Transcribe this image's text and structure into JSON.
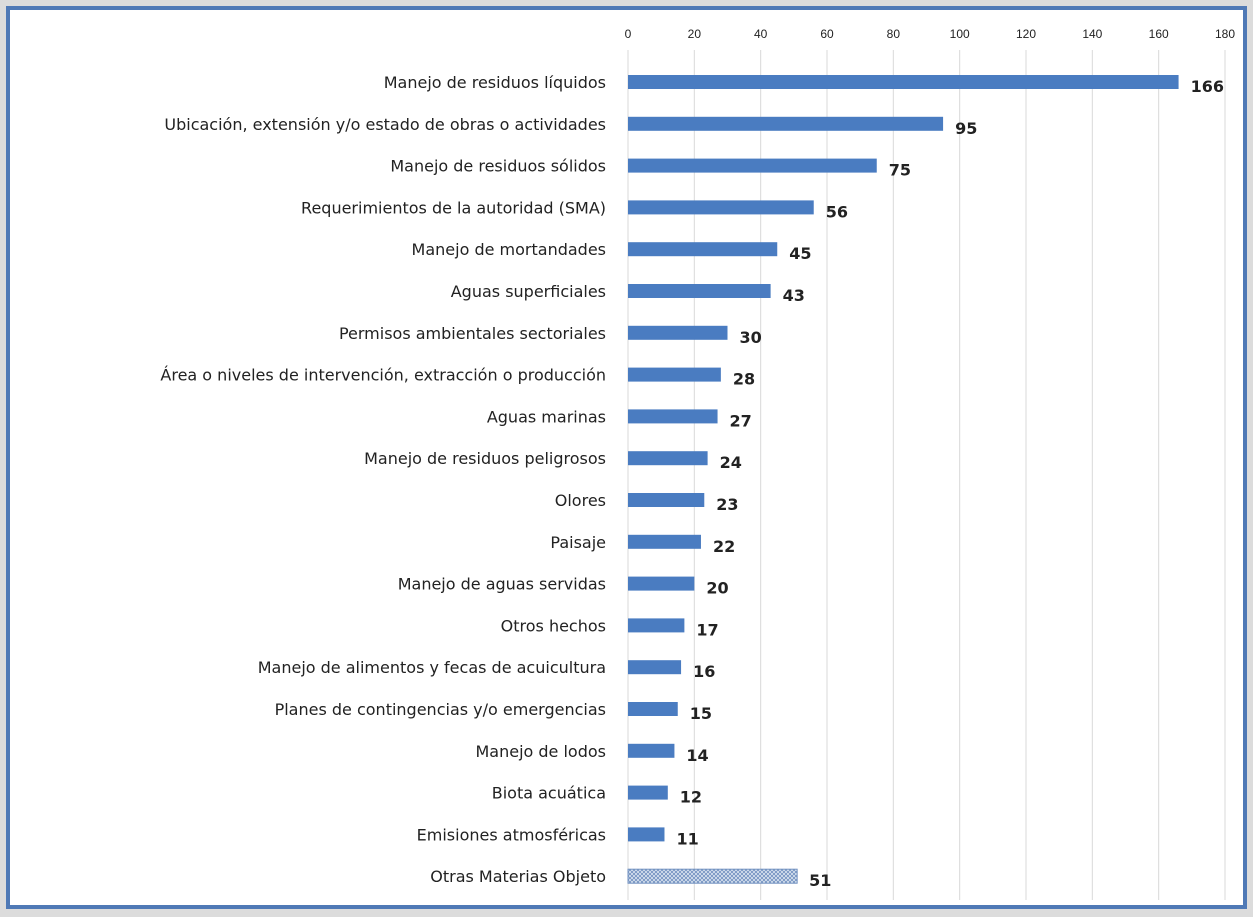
{
  "chart_data": {
    "type": "bar",
    "orientation": "horizontal",
    "categories": [
      "Manejo de residuos líquidos",
      "Ubicación, extensión y/o estado de obras o actividades",
      "Manejo de residuos sólidos",
      "Requerimientos de la autoridad (SMA)",
      "Manejo de mortandades",
      "Aguas superficiales",
      "Permisos ambientales sectoriales",
      "Área o niveles de intervención, extracción o producción",
      "Aguas marinas",
      "Manejo de residuos peligrosos",
      "Olores",
      "Paisaje",
      "Manejo de aguas servidas",
      "Otros hechos",
      "Manejo de alimentos y fecas de acuicultura",
      "Planes de contingencias y/o emergencias",
      "Manejo de lodos",
      "Biota acuática",
      "Emisiones atmosféricas",
      "Otras Materias Objeto"
    ],
    "values": [
      166,
      95,
      75,
      56,
      45,
      43,
      30,
      28,
      27,
      24,
      23,
      22,
      20,
      17,
      16,
      15,
      14,
      12,
      11,
      51
    ],
    "patterned": [
      false,
      false,
      false,
      false,
      false,
      false,
      false,
      false,
      false,
      false,
      false,
      false,
      false,
      false,
      false,
      false,
      false,
      false,
      false,
      true
    ],
    "xlim": [
      0,
      180
    ],
    "xticks": [
      0,
      20,
      40,
      60,
      80,
      100,
      120,
      140,
      160,
      180
    ],
    "xaxis_position": "top",
    "grid": true,
    "colors": {
      "bar": "#4a7cc1",
      "pattern_fill": "#dde6f2",
      "pattern_stroke": "#6f8fbf",
      "grid": "#d9d9d9",
      "frame": "#4f79b6"
    }
  }
}
